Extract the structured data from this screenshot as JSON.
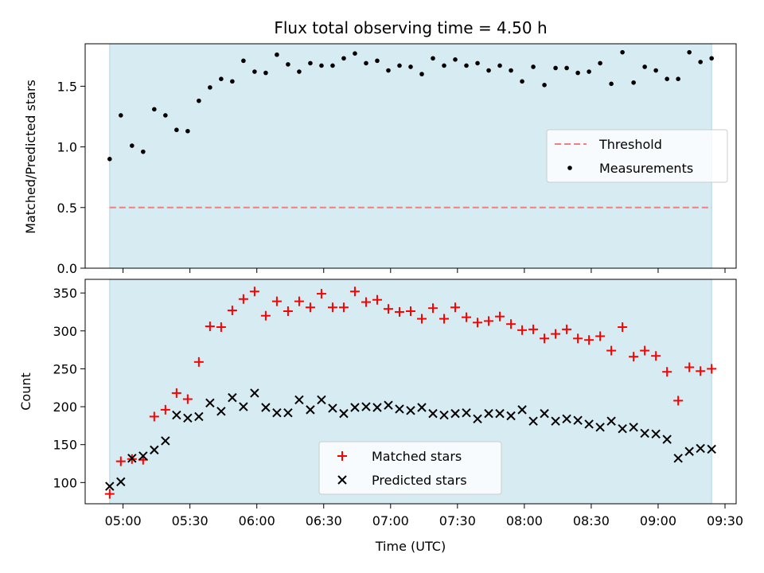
{
  "chart_data": [
    {
      "type": "scatter",
      "title": "Flux total observing time = 4.50 h",
      "xlabel": "",
      "ylabel": "Matched/Predicted stars",
      "xlim": [
        "04:43",
        "09:35"
      ],
      "ylim": [
        0,
        1.85
      ],
      "yticks": [
        0.0,
        0.5,
        1.0,
        1.5
      ],
      "ytick_labels": [
        "0.0",
        "0.5",
        "1.0",
        "1.5"
      ],
      "shaded_span": [
        "04:54",
        "09:24"
      ],
      "shade_color": "#add8e6",
      "threshold": {
        "name": "Threshold",
        "value": 0.5,
        "color": "#f08080",
        "style": "dashed"
      },
      "legend": {
        "placement": "center-right",
        "entries": [
          "Threshold",
          "Measurements"
        ]
      },
      "series": [
        {
          "name": "Measurements",
          "color": "#000000",
          "marker": "dot",
          "x": [
            "04:54",
            "04:59",
            "05:04",
            "05:09",
            "05:14",
            "05:19",
            "05:24",
            "05:29",
            "05:34",
            "05:39",
            "05:44",
            "05:49",
            "05:54",
            "05:59",
            "06:04",
            "06:09",
            "06:14",
            "06:19",
            "06:24",
            "06:29",
            "06:34",
            "06:39",
            "06:44",
            "06:49",
            "06:54",
            "06:59",
            "07:04",
            "07:09",
            "07:14",
            "07:19",
            "07:24",
            "07:29",
            "07:34",
            "07:39",
            "07:44",
            "07:49",
            "07:54",
            "07:59",
            "08:04",
            "08:09",
            "08:14",
            "08:19",
            "08:24",
            "08:29",
            "08:34",
            "08:39",
            "08:44",
            "08:49",
            "08:54",
            "08:59",
            "09:04",
            "09:09",
            "09:14",
            "09:19",
            "09:24"
          ],
          "y": [
            0.9,
            1.26,
            1.01,
            0.96,
            1.31,
            1.26,
            1.14,
            1.13,
            1.38,
            1.49,
            1.56,
            1.54,
            1.71,
            1.62,
            1.61,
            1.76,
            1.68,
            1.62,
            1.69,
            1.67,
            1.67,
            1.73,
            1.77,
            1.69,
            1.71,
            1.63,
            1.67,
            1.66,
            1.6,
            1.73,
            1.67,
            1.72,
            1.67,
            1.69,
            1.63,
            1.67,
            1.63,
            1.54,
            1.66,
            1.51,
            1.65,
            1.65,
            1.61,
            1.62,
            1.69,
            1.52,
            1.78,
            1.53,
            1.66,
            1.63,
            1.56,
            1.56,
            1.78,
            1.7,
            1.73
          ]
        }
      ]
    },
    {
      "type": "scatter",
      "title": "",
      "xlabel": "Time (UTC)",
      "ylabel": "Count",
      "xlim": [
        "04:43",
        "09:35"
      ],
      "ylim": [
        72,
        368
      ],
      "yticks": [
        100,
        150,
        200,
        250,
        300,
        350
      ],
      "ytick_labels": [
        "100",
        "150",
        "200",
        "250",
        "300",
        "350"
      ],
      "xticks": [
        "05:00",
        "05:30",
        "06:00",
        "06:30",
        "07:00",
        "07:30",
        "08:00",
        "08:30",
        "09:00",
        "09:30"
      ],
      "xtick_labels": [
        "05:00",
        "05:30",
        "06:00",
        "06:30",
        "07:00",
        "07:30",
        "08:00",
        "08:30",
        "09:00",
        "09:30"
      ],
      "shaded_span": [
        "04:54",
        "09:24"
      ],
      "shade_color": "#add8e6",
      "legend": {
        "placement": "bottom-center",
        "entries": [
          "Matched stars",
          "Predicted stars"
        ]
      },
      "series": [
        {
          "name": "Matched stars",
          "color": "#ff0000",
          "marker": "plus",
          "x": [
            "04:54",
            "04:59",
            "05:04",
            "05:09",
            "05:14",
            "05:19",
            "05:24",
            "05:29",
            "05:34",
            "05:39",
            "05:44",
            "05:49",
            "05:54",
            "05:59",
            "06:04",
            "06:09",
            "06:14",
            "06:19",
            "06:24",
            "06:29",
            "06:34",
            "06:39",
            "06:44",
            "06:49",
            "06:54",
            "06:59",
            "07:04",
            "07:09",
            "07:14",
            "07:19",
            "07:24",
            "07:29",
            "07:34",
            "07:39",
            "07:44",
            "07:49",
            "07:54",
            "07:59",
            "08:04",
            "08:09",
            "08:14",
            "08:19",
            "08:24",
            "08:29",
            "08:34",
            "08:39",
            "08:44",
            "08:49",
            "08:54",
            "08:59",
            "09:04",
            "09:09",
            "09:14",
            "09:19",
            "09:24"
          ],
          "y": [
            85,
            128,
            131,
            130,
            187,
            196,
            218,
            210,
            259,
            306,
            305,
            327,
            342,
            352,
            320,
            339,
            326,
            339,
            331,
            349,
            331,
            331,
            352,
            338,
            341,
            329,
            325,
            326,
            316,
            330,
            316,
            331,
            318,
            311,
            313,
            319,
            309,
            301,
            302,
            290,
            296,
            302,
            290,
            288,
            293,
            274,
            305,
            266,
            274,
            267,
            246,
            208,
            252,
            247,
            250
          ]
        },
        {
          "name": "Predicted stars",
          "color": "#000000",
          "marker": "x",
          "x": [
            "04:54",
            "04:59",
            "05:04",
            "05:09",
            "05:14",
            "05:19",
            "05:24",
            "05:29",
            "05:34",
            "05:39",
            "05:44",
            "05:49",
            "05:54",
            "05:59",
            "06:04",
            "06:09",
            "06:14",
            "06:19",
            "06:24",
            "06:29",
            "06:34",
            "06:39",
            "06:44",
            "06:49",
            "06:54",
            "06:59",
            "07:04",
            "07:09",
            "07:14",
            "07:19",
            "07:24",
            "07:29",
            "07:34",
            "07:39",
            "07:44",
            "07:49",
            "07:54",
            "07:59",
            "08:04",
            "08:09",
            "08:14",
            "08:19",
            "08:24",
            "08:29",
            "08:34",
            "08:39",
            "08:44",
            "08:49",
            "08:54",
            "08:59",
            "09:04",
            "09:09",
            "09:14",
            "09:19",
            "09:24"
          ],
          "y": [
            95,
            101,
            132,
            135,
            143,
            155,
            189,
            185,
            187,
            205,
            194,
            212,
            200,
            218,
            199,
            192,
            192,
            209,
            196,
            209,
            198,
            191,
            199,
            200,
            199,
            202,
            197,
            195,
            199,
            191,
            189,
            191,
            192,
            184,
            191,
            191,
            188,
            196,
            181,
            191,
            181,
            184,
            182,
            177,
            173,
            181,
            171,
            173,
            165,
            164,
            157,
            132,
            141,
            145,
            144
          ]
        }
      ]
    }
  ]
}
